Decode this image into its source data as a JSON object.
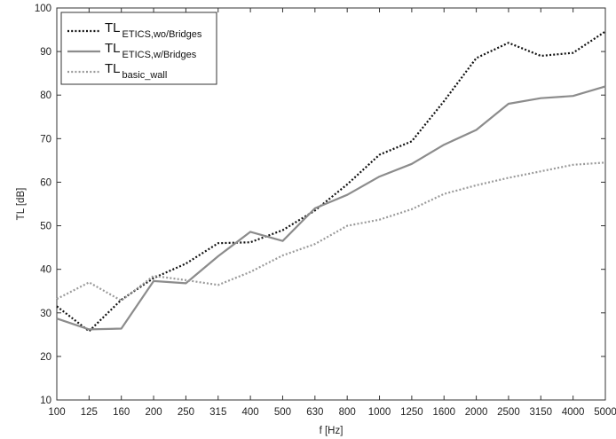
{
  "chart_data": {
    "type": "line",
    "xlabel": "f [Hz]",
    "ylabel": "TL [dB]",
    "ylim": [
      10,
      100
    ],
    "yticks": [
      10,
      20,
      30,
      40,
      50,
      60,
      70,
      80,
      90,
      100
    ],
    "categories": [
      "100",
      "125",
      "160",
      "200",
      "250",
      "315",
      "400",
      "500",
      "630",
      "800",
      "1000",
      "1250",
      "1600",
      "2000",
      "2500",
      "3150",
      "4000",
      "5000"
    ],
    "grid": false,
    "legend_position": "top-left",
    "series": [
      {
        "name": "TL",
        "name_sub": "ETICS,wo/Bridges",
        "style": "dotted",
        "color": "#111111",
        "values": [
          31.5,
          25.8,
          33.0,
          38.0,
          41.3,
          46.0,
          46.2,
          49.0,
          53.5,
          59.5,
          66.3,
          69.4,
          78.6,
          88.5,
          92.0,
          89.0,
          89.7,
          94.6
        ]
      },
      {
        "name": "TL",
        "name_sub": "ETICS,w/Bridges",
        "style": "solid",
        "color": "#8c8c8c",
        "values": [
          28.7,
          26.2,
          26.4,
          37.3,
          36.8,
          43.0,
          48.6,
          46.5,
          54.0,
          57.1,
          61.3,
          64.2,
          68.6,
          72.0,
          78.0,
          79.3,
          79.8,
          82.0
        ]
      },
      {
        "name": "TL",
        "name_sub": "basic_wall",
        "style": "dotted",
        "color": "#9a9a9a",
        "values": [
          33.2,
          37.0,
          32.8,
          38.5,
          37.5,
          36.4,
          39.4,
          43.2,
          45.8,
          50.0,
          51.4,
          53.8,
          57.3,
          59.3,
          61.0,
          62.5,
          64.0,
          64.5
        ]
      }
    ]
  }
}
